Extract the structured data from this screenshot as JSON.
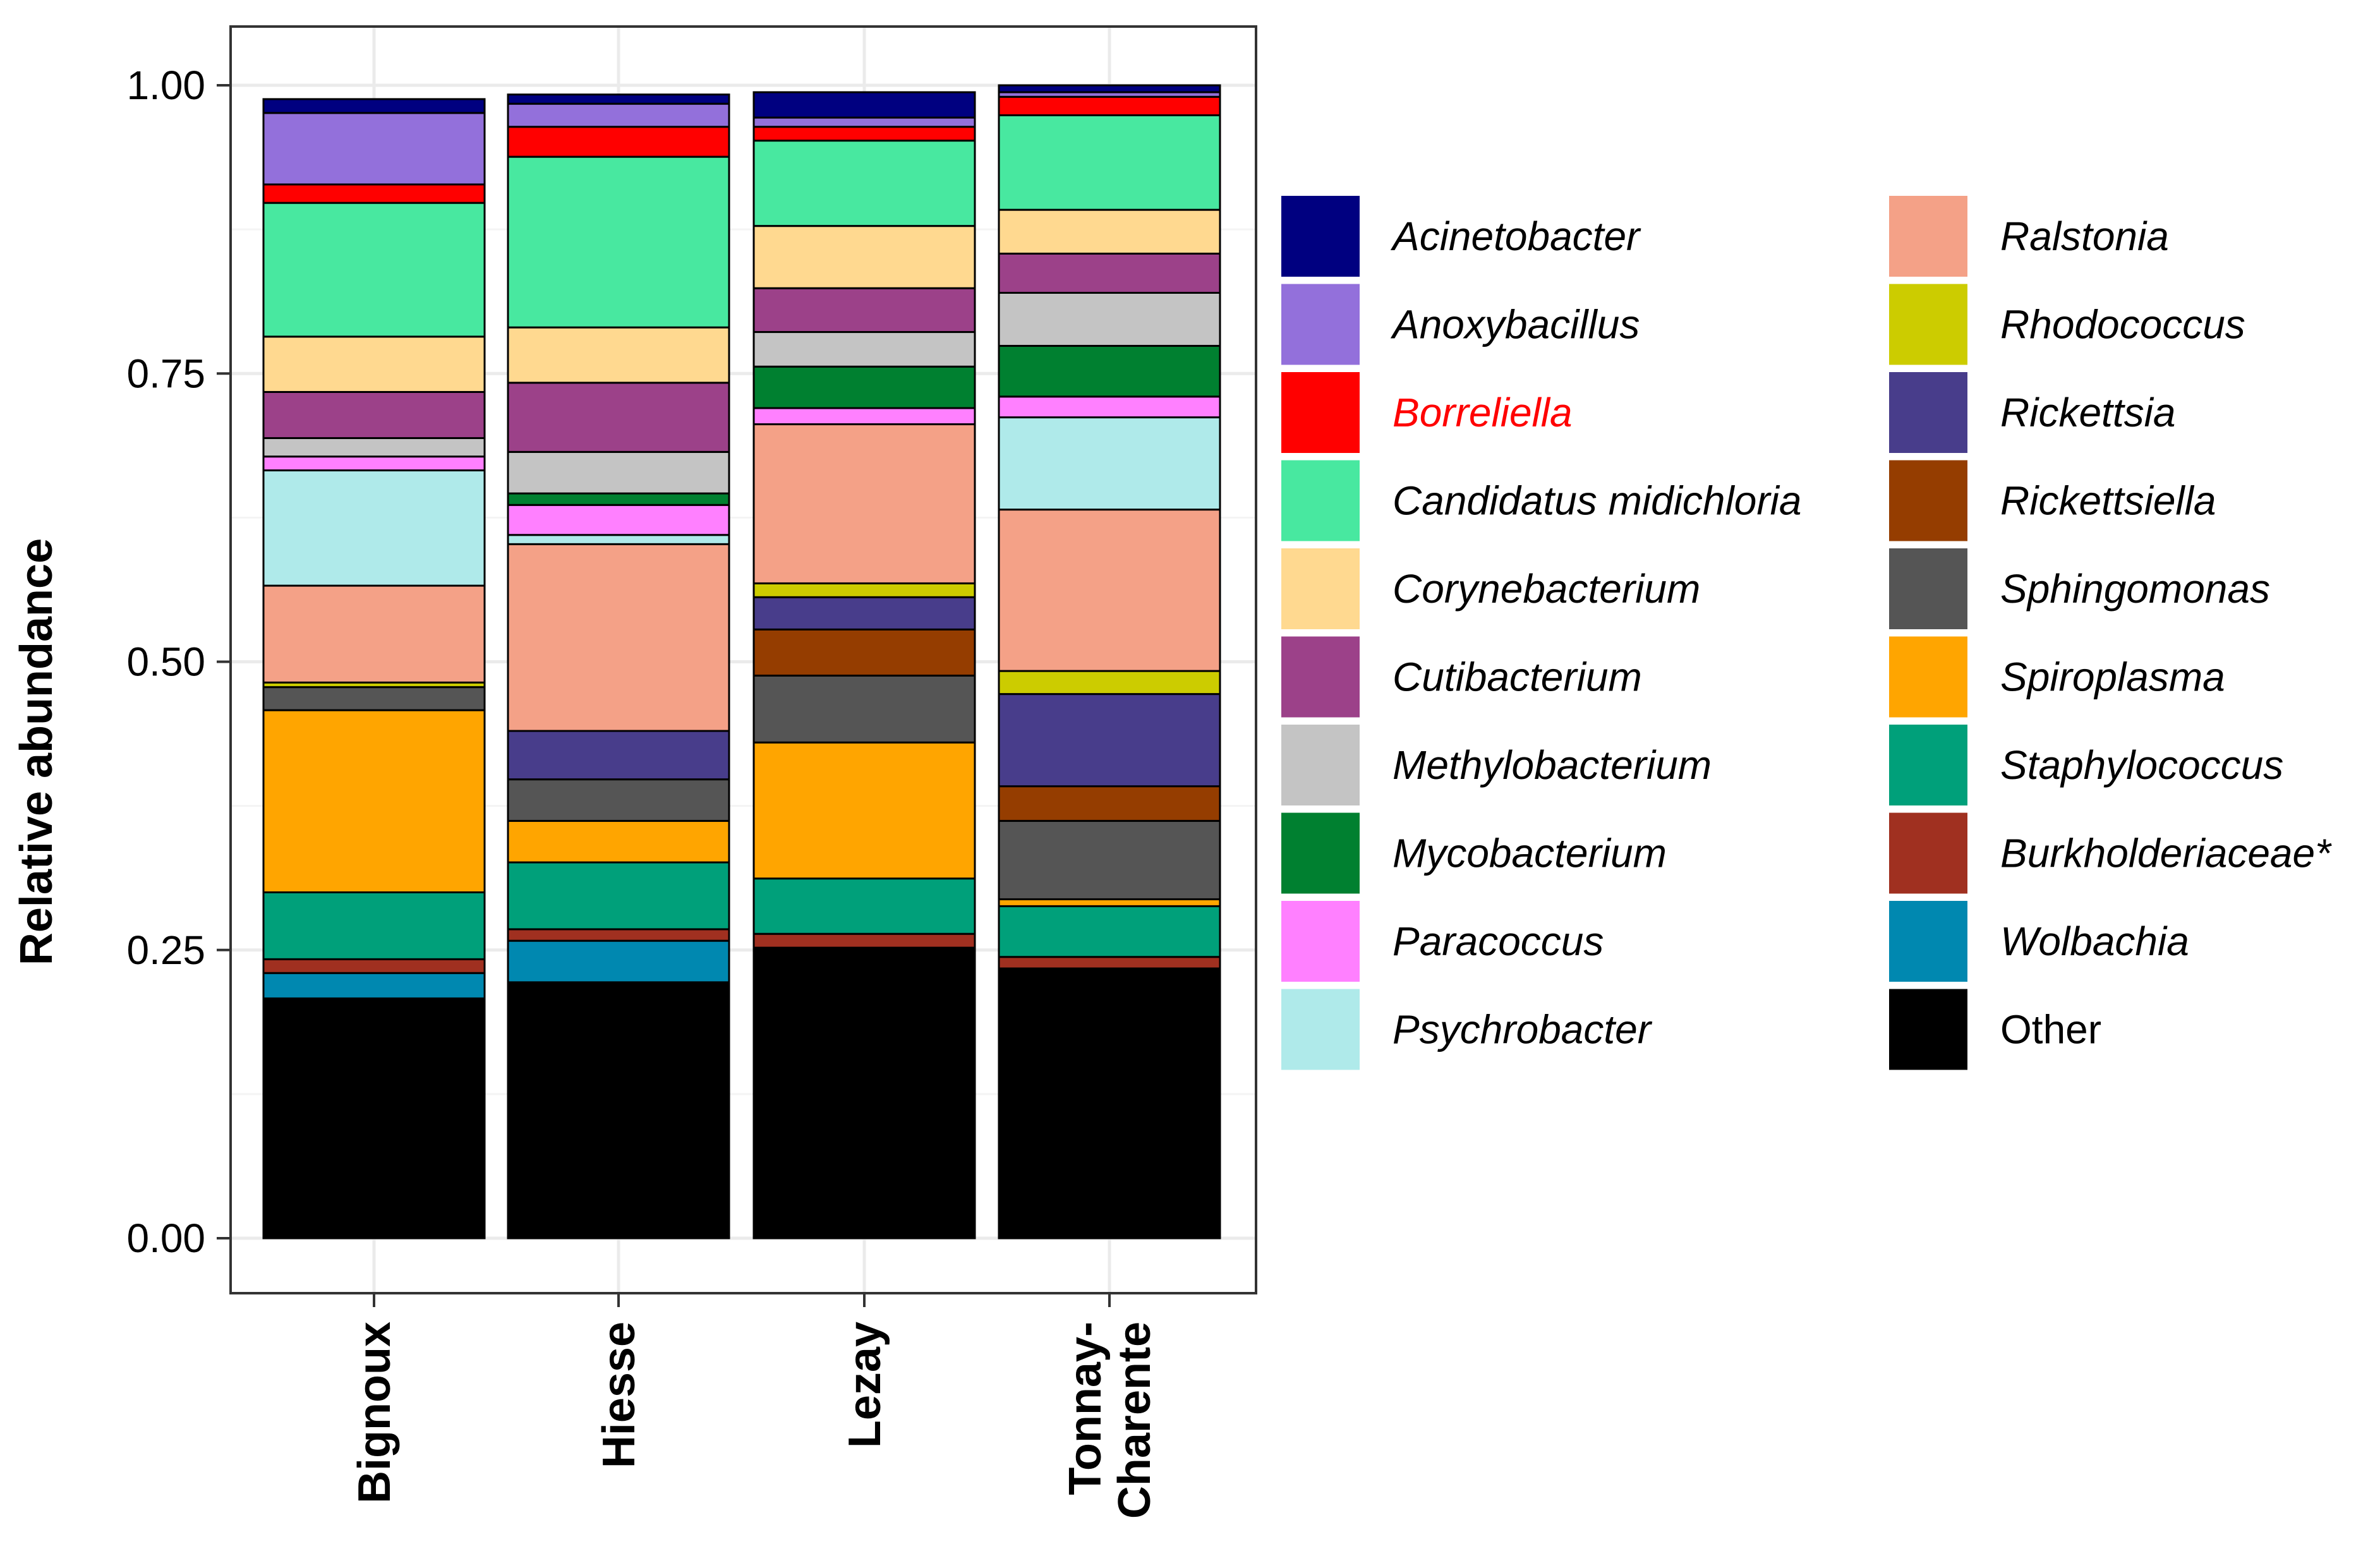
{
  "chart_data": {
    "type": "bar",
    "stacked": true,
    "title": "",
    "xlabel": "",
    "ylabel": "Relative abundance",
    "ylim": [
      0,
      1
    ],
    "yticks": [
      "0.00",
      "0.25",
      "0.50",
      "0.75",
      "1.00"
    ],
    "grid": true,
    "legend_position": "right",
    "categories": [
      "Bignoux",
      "Hiesse",
      "Lezay",
      "Tonnay-Charente"
    ],
    "category_labels": [
      [
        "Bignoux"
      ],
      [
        "Hiesse"
      ],
      [
        "Lezay"
      ],
      [
        "Tonnay-",
        "Charente"
      ]
    ],
    "series": [
      {
        "name": "Other",
        "color": "#000000",
        "values": [
          0.208,
          0.222,
          0.252,
          0.234
        ]
      },
      {
        "name": "Wolbachia",
        "color": "#0088B0",
        "values": [
          0.022,
          0.036,
          0.0,
          0.0
        ]
      },
      {
        "name": "Burkholderiaceae*",
        "color": "#A03020",
        "values": [
          0.012,
          0.01,
          0.012,
          0.01
        ]
      },
      {
        "name": "Staphylococcus",
        "color": "#00A07A",
        "values": [
          0.058,
          0.058,
          0.048,
          0.044
        ]
      },
      {
        "name": "Spiroplasma",
        "color": "#FFA500",
        "values": [
          0.158,
          0.036,
          0.118,
          0.006
        ]
      },
      {
        "name": "Sphingomonas",
        "color": "#555555",
        "values": [
          0.02,
          0.036,
          0.058,
          0.068
        ]
      },
      {
        "name": "Rickettsiella",
        "color": "#953D00",
        "values": [
          0.0,
          0.0,
          0.04,
          0.03
        ]
      },
      {
        "name": "Rickettsia",
        "color": "#483D8B",
        "values": [
          0.0,
          0.042,
          0.028,
          0.08
        ]
      },
      {
        "name": "Rhodococcus",
        "color": "#CCCC00",
        "values": [
          0.004,
          0.0,
          0.012,
          0.02
        ]
      },
      {
        "name": "Ralstonia",
        "color": "#F4A187",
        "values": [
          0.084,
          0.162,
          0.138,
          0.14
        ]
      },
      {
        "name": "Psychrobacter",
        "color": "#AFEAEA",
        "values": [
          0.1,
          0.008,
          0.0,
          0.08
        ]
      },
      {
        "name": "Paracoccus",
        "color": "#FF80FF",
        "values": [
          0.012,
          0.026,
          0.014,
          0.018
        ]
      },
      {
        "name": "Mycobacterium",
        "color": "#008030",
        "values": [
          0.0,
          0.01,
          0.036,
          0.044
        ]
      },
      {
        "name": "Methylobacterium",
        "color": "#C4C4C4",
        "values": [
          0.016,
          0.036,
          0.03,
          0.046
        ]
      },
      {
        "name": "Cutibacterium",
        "color": "#9C4189",
        "values": [
          0.04,
          0.06,
          0.038,
          0.034
        ]
      },
      {
        "name": "Corynebacterium",
        "color": "#FFD990",
        "values": [
          0.048,
          0.048,
          0.054,
          0.038
        ]
      },
      {
        "name": "Candidatus midichloria",
        "color": "#48E8A0",
        "values": [
          0.116,
          0.148,
          0.074,
          0.082
        ]
      },
      {
        "name": "Borreliella",
        "color": "#FF0000",
        "values": [
          0.016,
          0.026,
          0.012,
          0.016
        ]
      },
      {
        "name": "Anoxybacillus",
        "color": "#9370DB",
        "values": [
          0.062,
          0.02,
          0.008,
          0.004
        ]
      },
      {
        "name": "Acinetobacter",
        "color": "#000080",
        "values": [
          0.012,
          0.008,
          0.022,
          0.006
        ]
      }
    ],
    "legend_columns": [
      [
        {
          "name": "Acinetobacter",
          "color": "#000080"
        },
        {
          "name": "Anoxybacillus",
          "color": "#9370DB"
        },
        {
          "name": "Borreliella",
          "color": "#FF0000",
          "text_color": "#FF0000"
        },
        {
          "name": "Candidatus midichloria",
          "color": "#48E8A0"
        },
        {
          "name": "Corynebacterium",
          "color": "#FFD990"
        },
        {
          "name": "Cutibacterium",
          "color": "#9C4189"
        },
        {
          "name": "Methylobacterium",
          "color": "#C4C4C4"
        },
        {
          "name": "Mycobacterium",
          "color": "#008030"
        },
        {
          "name": "Paracoccus",
          "color": "#FF80FF"
        },
        {
          "name": "Psychrobacter",
          "color": "#AFEAEA"
        }
      ],
      [
        {
          "name": "Ralstonia",
          "color": "#F4A187"
        },
        {
          "name": "Rhodococcus",
          "color": "#CCCC00"
        },
        {
          "name": "Rickettsia",
          "color": "#483D8B"
        },
        {
          "name": "Rickettsiella",
          "color": "#953D00"
        },
        {
          "name": "Sphingomonas",
          "color": "#555555"
        },
        {
          "name": "Spiroplasma",
          "color": "#FFA500"
        },
        {
          "name": "Staphylococcus",
          "color": "#00A07A"
        },
        {
          "name": "Burkholderiaceae*",
          "color": "#A03020"
        },
        {
          "name": "Wolbachia",
          "color": "#0088B0"
        },
        {
          "name": "Other",
          "color": "#000000",
          "plain": true
        }
      ]
    ]
  }
}
